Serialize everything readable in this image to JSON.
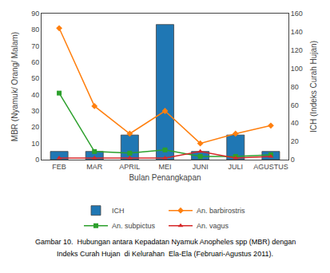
{
  "chart_data": {
    "type": "bar",
    "categories": [
      "FEB",
      "MAR",
      "APRIL",
      "MEI",
      "JUNI",
      "JULI",
      "AGUSTUS"
    ],
    "series": [
      {
        "name": "ICH",
        "type": "bar",
        "axis": "y2",
        "values": [
          9,
          9,
          27,
          148,
          9,
          27,
          9
        ]
      },
      {
        "name": "An. barbirostris",
        "type": "line",
        "marker": "diamond",
        "values": [
          81,
          33,
          16,
          30,
          10,
          16,
          21
        ]
      },
      {
        "name": "An. subpictus",
        "type": "line",
        "marker": "square",
        "values": [
          41,
          5,
          4,
          6,
          2,
          2,
          3
        ]
      },
      {
        "name": "An. vagus",
        "type": "line",
        "marker": "triangle-up",
        "values": [
          1,
          1,
          1,
          1,
          5,
          1,
          2
        ]
      }
    ],
    "xlabel": "Bulan Penangkapan",
    "ylabel": "MBR (Nyamuk/ Orang/ Malam)",
    "y2label": "ICH (Indeks Curah Hujan)",
    "ylim": [
      0,
      90
    ],
    "yticks": [
      0,
      10,
      20,
      30,
      40,
      50,
      60,
      70,
      80,
      90
    ],
    "y2lim": [
      0,
      160
    ],
    "y2ticks": [
      0,
      20,
      40,
      60,
      80,
      100,
      120,
      140,
      160
    ],
    "grid": false,
    "legend": "bottom",
    "annotations": [
      "Gambar 10.  Hubungan antara Kepadatan Nyamuk Anopheles spp (MBR) dengan",
      "Indeks Curah Hujan  di Kelurahan  Ela-Ela (Februari-Agustus 2011)."
    ]
  }
}
